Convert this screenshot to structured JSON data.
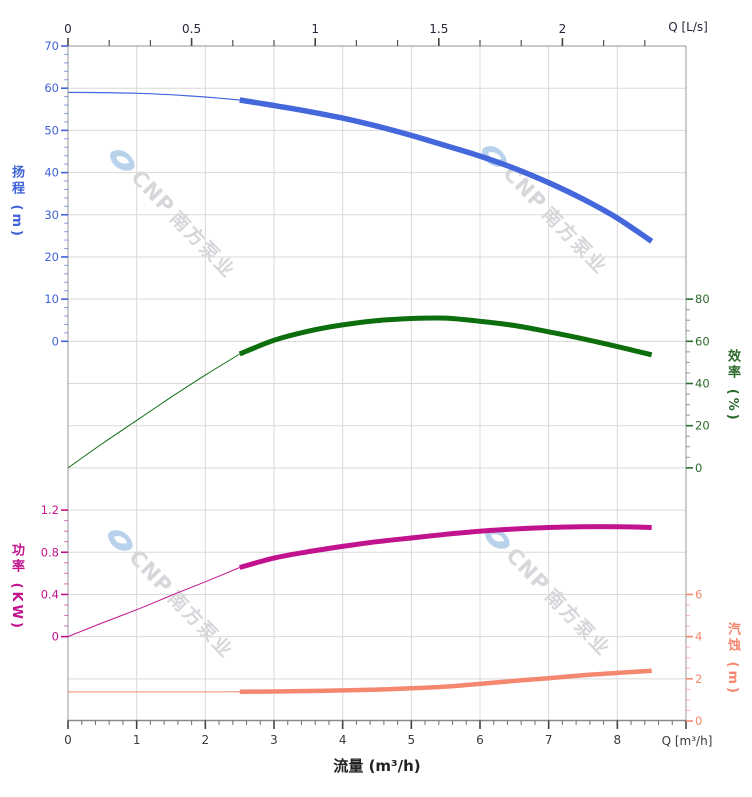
{
  "watermark": {
    "brand": "CNP",
    "brand_cn": "南方泵业",
    "logo": "cnp-eye-logo",
    "logo_color": "#b9d2ec",
    "text_color": "#d7d7db",
    "count": 4
  },
  "chart_data": {
    "type": "line",
    "description": "Pump performance curves: head, efficiency, power and NPSH versus flow rate",
    "grid": {
      "color": "#d9d9d9",
      "frame_color": "#a9a9a9",
      "bottom_axis_color": "#8a8a8a",
      "tick_color": "#444444"
    },
    "x_axis_bottom": {
      "title": "流量 (m³/h)",
      "unit_label": "Q [m³/h]",
      "min": 0,
      "max": 9,
      "major_tick_step": 1,
      "minor_tick_step": 0.2,
      "labeled_ticks": [
        0,
        1,
        2,
        3,
        4,
        5,
        6,
        7,
        8
      ],
      "label_color": "#3c3c3c",
      "title_color": "#222222"
    },
    "x_axis_top": {
      "unit_label": "Q [L/s]",
      "min": 0,
      "max": 2.5,
      "major_tick_step": 0.5,
      "minor_tick_step": 0.166667,
      "labeled_ticks": [
        0,
        0.5,
        1,
        1.5,
        2
      ],
      "label_color": "#26263c"
    },
    "y_axes": [
      {
        "id": "head",
        "title": "扬程 (m)",
        "side": "left",
        "color": "#4063d8",
        "min": 0,
        "max": 70,
        "major_tick_step": 10,
        "minor_tick_step": 2,
        "labeled_ticks": [
          70,
          60,
          50,
          40,
          30,
          20,
          10,
          0
        ],
        "row_max": 0,
        "row_min": 7
      },
      {
        "id": "efficiency",
        "title": "效率 (%)",
        "side": "right",
        "color": "#2d6a2d",
        "min": 0,
        "max": 80,
        "major_tick_step": 20,
        "minor_tick_step": 5,
        "labeled_ticks": [
          80,
          60,
          40,
          20,
          0
        ],
        "row_max": 6,
        "row_min": 10
      },
      {
        "id": "power",
        "title": "功率 (KW)",
        "side": "left",
        "color": "#c2138e",
        "min": 0,
        "max": 1.2,
        "major_tick_step": 0.4,
        "minor_tick_step": 0.1,
        "labeled_ticks": [
          1.2,
          0.8,
          0.4,
          0
        ],
        "row_max": 11,
        "row_min": 14
      },
      {
        "id": "npsh",
        "title": "汽蚀 (m)",
        "side": "right",
        "color": "#f5876f",
        "min": 0,
        "max": 6,
        "major_tick_step": 2,
        "minor_tick_step": 0.5,
        "labeled_ticks": [
          6,
          4,
          2,
          0
        ],
        "row_max": 13,
        "row_min": 16
      }
    ],
    "series": [
      {
        "name": "head",
        "axis": "head",
        "color": "#4468dc",
        "split_q": 2.5,
        "thin_width": 1.2,
        "thick_width": 5.5,
        "points": [
          [
            0,
            59
          ],
          [
            0.5,
            58.95
          ],
          [
            1,
            58.8
          ],
          [
            1.5,
            58.45
          ],
          [
            2,
            57.9
          ],
          [
            2.5,
            57.2
          ],
          [
            3,
            55.9
          ],
          [
            3.5,
            54.5
          ],
          [
            4,
            52.9
          ],
          [
            4.5,
            51.0
          ],
          [
            5,
            48.8
          ],
          [
            5.5,
            46.4
          ],
          [
            6,
            43.9
          ],
          [
            6.5,
            41.0
          ],
          [
            7,
            37.6
          ],
          [
            7.5,
            33.7
          ],
          [
            8,
            29.2
          ],
          [
            8.5,
            23.7
          ]
        ]
      },
      {
        "name": "efficiency",
        "axis": "efficiency",
        "color": "#0d6e0d",
        "split_q": 2.5,
        "thin_width": 1.0,
        "thick_width": 5.0,
        "points": [
          [
            0,
            0
          ],
          [
            0.5,
            11.5
          ],
          [
            1,
            22.5
          ],
          [
            1.5,
            33.5
          ],
          [
            2,
            44
          ],
          [
            2.5,
            54
          ],
          [
            3,
            60.5
          ],
          [
            3.5,
            64.8
          ],
          [
            4,
            67.8
          ],
          [
            4.5,
            69.8
          ],
          [
            5,
            70.8
          ],
          [
            5.5,
            71
          ],
          [
            6,
            69.5
          ],
          [
            6.5,
            67.5
          ],
          [
            7,
            64.5
          ],
          [
            7.5,
            61.2
          ],
          [
            8,
            57.5
          ],
          [
            8.5,
            53.6
          ]
        ]
      },
      {
        "name": "power",
        "axis": "power",
        "color": "#c2138e",
        "split_q": 2.5,
        "thin_width": 1.0,
        "thick_width": 5.0,
        "points": [
          [
            0,
            0
          ],
          [
            0.5,
            0.13
          ],
          [
            1,
            0.255
          ],
          [
            1.5,
            0.39
          ],
          [
            2,
            0.52
          ],
          [
            2.5,
            0.655
          ],
          [
            3,
            0.745
          ],
          [
            3.5,
            0.805
          ],
          [
            4,
            0.855
          ],
          [
            4.5,
            0.9
          ],
          [
            5,
            0.935
          ],
          [
            5.5,
            0.97
          ],
          [
            6,
            1.0
          ],
          [
            6.5,
            1.02
          ],
          [
            7,
            1.035
          ],
          [
            7.5,
            1.042
          ],
          [
            8,
            1.042
          ],
          [
            8.5,
            1.035
          ]
        ]
      },
      {
        "name": "npsh",
        "axis": "npsh",
        "color": "#f5876f",
        "split_q": 2.5,
        "thin_width": 1.0,
        "thick_width": 4.5,
        "points": [
          [
            0,
            1.38
          ],
          [
            0.5,
            1.38
          ],
          [
            1,
            1.38
          ],
          [
            1.5,
            1.38
          ],
          [
            2,
            1.38
          ],
          [
            2.5,
            1.39
          ],
          [
            3,
            1.4
          ],
          [
            3.5,
            1.42
          ],
          [
            4,
            1.45
          ],
          [
            4.5,
            1.49
          ],
          [
            5,
            1.55
          ],
          [
            5.5,
            1.63
          ],
          [
            6,
            1.76
          ],
          [
            6.5,
            1.9
          ],
          [
            7,
            2.03
          ],
          [
            7.5,
            2.17
          ],
          [
            8,
            2.28
          ],
          [
            8.5,
            2.38
          ]
        ]
      }
    ]
  }
}
